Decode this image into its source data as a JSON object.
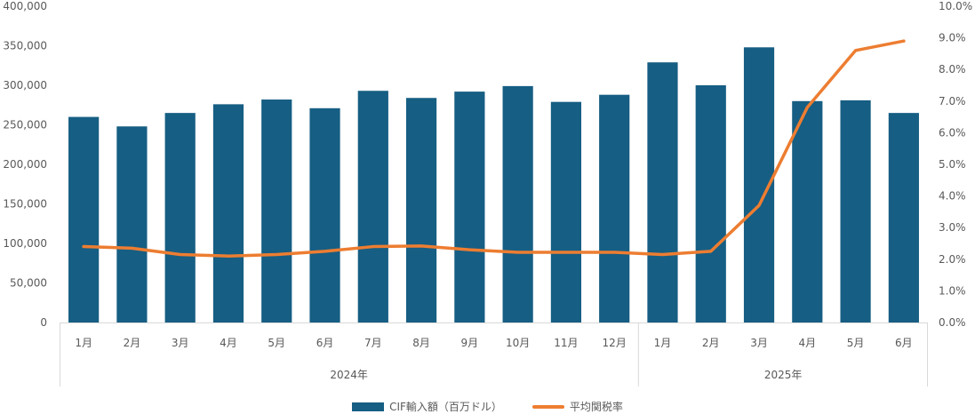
{
  "chart_data": {
    "type": "bar",
    "categories": [
      "1月",
      "2月",
      "3月",
      "4月",
      "5月",
      "6月",
      "7月",
      "8月",
      "9月",
      "10月",
      "11月",
      "12月",
      "1月",
      "2月",
      "3月",
      "4月",
      "5月",
      "6月"
    ],
    "groups": [
      {
        "label": "2024年",
        "count": 12
      },
      {
        "label": "2025年",
        "count": 6
      }
    ],
    "series": [
      {
        "name": "CIF輸入額（百万ドル）",
        "type": "bar",
        "axis": "left",
        "values": [
          260000,
          248000,
          265000,
          276000,
          282000,
          271000,
          293000,
          284000,
          292000,
          299000,
          279000,
          288000,
          329000,
          300000,
          348000,
          280000,
          281000,
          265000
        ]
      },
      {
        "name": "平均関税率",
        "type": "line",
        "axis": "right",
        "values": [
          2.4,
          2.35,
          2.15,
          2.1,
          2.15,
          2.25,
          2.4,
          2.42,
          2.3,
          2.22,
          2.22,
          2.22,
          2.15,
          2.25,
          3.7,
          6.8,
          8.6,
          8.9
        ]
      }
    ],
    "y_left": {
      "min": 0,
      "max": 400000,
      "step": 50000,
      "tick_labels": [
        "0",
        "50,000",
        "100,000",
        "150,000",
        "200,000",
        "250,000",
        "300,000",
        "350,000",
        "400,000"
      ]
    },
    "y_right": {
      "min": 0,
      "max": 10,
      "step": 1,
      "tick_labels": [
        "0.0%",
        "1.0%",
        "2.0%",
        "3.0%",
        "4.0%",
        "5.0%",
        "6.0%",
        "7.0%",
        "8.0%",
        "9.0%",
        "10.0%"
      ]
    },
    "colors": {
      "bar": "#165e83",
      "line": "#ed7d31",
      "axis": "#d9d9d9",
      "text": "#595959"
    },
    "legend_position": "bottom",
    "grid": false
  }
}
